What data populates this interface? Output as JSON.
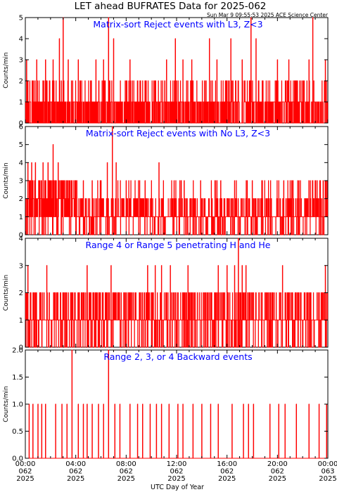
{
  "header": {
    "title": "LET ahead BUFRATES Data for 2025-062",
    "timestamp": "Sun Mar  9 09:55:53 2025 ACE Science Center"
  },
  "xaxis": {
    "label": "UTC Day of Year",
    "ticks": [
      {
        "time": "00:00",
        "doy": "062",
        "year": "2025"
      },
      {
        "time": "04:00",
        "doy": "062",
        "year": "2025"
      },
      {
        "time": "08:00",
        "doy": "062",
        "year": "2025"
      },
      {
        "time": "12:00",
        "doy": "062",
        "year": "2025"
      },
      {
        "time": "16:00",
        "doy": "062",
        "year": "2025"
      },
      {
        "time": "20:00",
        "doy": "062",
        "year": "2025"
      },
      {
        "time": "00:00",
        "doy": "063",
        "year": "2025"
      }
    ]
  },
  "colors": {
    "data": "#ff0000",
    "panel_title": "#0000ff",
    "axes": "#000000"
  },
  "chart_data": [
    {
      "type": "line",
      "title": "Matrix-sort Reject events with L3, Z<3",
      "ylabel": "Counts/min",
      "xlim": [
        0,
        24
      ],
      "ylim": [
        0,
        5
      ],
      "yticks": [
        "0",
        "1",
        "2",
        "3",
        "4",
        "5"
      ],
      "x_unit": "hours UTC",
      "notes": "minute-resolution counts; baseline mostly alternating 0-1 with frequent 2s",
      "peaks": [
        {
          "x": 0.1,
          "y": 3
        },
        {
          "x": 0.9,
          "y": 3
        },
        {
          "x": 1.6,
          "y": 3
        },
        {
          "x": 2.2,
          "y": 3
        },
        {
          "x": 2.7,
          "y": 4
        },
        {
          "x": 3.0,
          "y": 5
        },
        {
          "x": 3.4,
          "y": 3
        },
        {
          "x": 4.2,
          "y": 3
        },
        {
          "x": 5.6,
          "y": 3
        },
        {
          "x": 6.2,
          "y": 3
        },
        {
          "x": 6.6,
          "y": 5
        },
        {
          "x": 7.0,
          "y": 4
        },
        {
          "x": 8.3,
          "y": 3
        },
        {
          "x": 11.2,
          "y": 3
        },
        {
          "x": 11.9,
          "y": 4
        },
        {
          "x": 12.5,
          "y": 3
        },
        {
          "x": 13.2,
          "y": 3
        },
        {
          "x": 14.6,
          "y": 4
        },
        {
          "x": 15.2,
          "y": 3
        },
        {
          "x": 16.3,
          "y": 4
        },
        {
          "x": 17.2,
          "y": 3
        },
        {
          "x": 17.9,
          "y": 5
        },
        {
          "x": 18.3,
          "y": 4
        },
        {
          "x": 20.0,
          "y": 3
        },
        {
          "x": 20.9,
          "y": 3
        },
        {
          "x": 22.5,
          "y": 3
        },
        {
          "x": 22.8,
          "y": 5
        },
        {
          "x": 23.8,
          "y": 3
        }
      ]
    },
    {
      "type": "line",
      "title": "Matrix-sort Reject events with No L3, Z<3",
      "ylabel": "Counts/min",
      "xlim": [
        0,
        24
      ],
      "ylim": [
        0,
        6
      ],
      "yticks": [
        "0",
        "1",
        "2",
        "3",
        "4",
        "5",
        "6"
      ],
      "x_unit": "hours UTC",
      "notes": "busier in first hours (0-4), mostly 1 with frequent 2-3 afterwards",
      "peaks": [
        {
          "x": 0.2,
          "y": 4
        },
        {
          "x": 0.5,
          "y": 4
        },
        {
          "x": 0.8,
          "y": 4
        },
        {
          "x": 1.1,
          "y": 3
        },
        {
          "x": 1.4,
          "y": 4
        },
        {
          "x": 1.8,
          "y": 4
        },
        {
          "x": 2.2,
          "y": 5
        },
        {
          "x": 2.6,
          "y": 4
        },
        {
          "x": 3.0,
          "y": 3
        },
        {
          "x": 3.5,
          "y": 3
        },
        {
          "x": 4.0,
          "y": 3
        },
        {
          "x": 4.6,
          "y": 3
        },
        {
          "x": 5.3,
          "y": 3
        },
        {
          "x": 6.0,
          "y": 3
        },
        {
          "x": 6.5,
          "y": 4
        },
        {
          "x": 6.9,
          "y": 6
        },
        {
          "x": 7.2,
          "y": 4
        },
        {
          "x": 8.0,
          "y": 3
        },
        {
          "x": 9.5,
          "y": 3
        },
        {
          "x": 10.6,
          "y": 4
        },
        {
          "x": 11.8,
          "y": 3
        },
        {
          "x": 12.6,
          "y": 3
        },
        {
          "x": 13.9,
          "y": 3
        },
        {
          "x": 15.5,
          "y": 3
        },
        {
          "x": 16.6,
          "y": 3
        },
        {
          "x": 18.0,
          "y": 3
        },
        {
          "x": 18.8,
          "y": 3
        },
        {
          "x": 20.5,
          "y": 3
        },
        {
          "x": 21.7,
          "y": 3
        },
        {
          "x": 22.6,
          "y": 3
        },
        {
          "x": 23.4,
          "y": 3
        }
      ]
    },
    {
      "type": "line",
      "title": "Range 4 or Range 5 penetrating H and He",
      "ylabel": "Counts/min",
      "xlim": [
        0,
        24
      ],
      "ylim": [
        0,
        4
      ],
      "yticks": [
        "0",
        "1",
        "2",
        "3",
        "4"
      ],
      "x_unit": "hours UTC",
      "notes": "dense fill up to 1, frequent excursions to 2",
      "peaks": [
        {
          "x": 0.2,
          "y": 3
        },
        {
          "x": 1.7,
          "y": 3
        },
        {
          "x": 2.3,
          "y": 2
        },
        {
          "x": 4.9,
          "y": 3
        },
        {
          "x": 5.9,
          "y": 2
        },
        {
          "x": 6.8,
          "y": 3
        },
        {
          "x": 7.6,
          "y": 2
        },
        {
          "x": 9.7,
          "y": 3
        },
        {
          "x": 10.3,
          "y": 3
        },
        {
          "x": 10.8,
          "y": 3
        },
        {
          "x": 11.5,
          "y": 3
        },
        {
          "x": 12.9,
          "y": 3
        },
        {
          "x": 13.4,
          "y": 2
        },
        {
          "x": 15.3,
          "y": 3
        },
        {
          "x": 16.0,
          "y": 3
        },
        {
          "x": 16.6,
          "y": 3
        },
        {
          "x": 16.9,
          "y": 4
        },
        {
          "x": 17.2,
          "y": 3
        },
        {
          "x": 17.5,
          "y": 3
        },
        {
          "x": 20.4,
          "y": 3
        },
        {
          "x": 21.4,
          "y": 2
        },
        {
          "x": 22.4,
          "y": 2
        },
        {
          "x": 23.8,
          "y": 3
        }
      ]
    },
    {
      "type": "line",
      "title": "Range 2, 3, or 4 Backward events",
      "ylabel": "Counts/min",
      "xlim": [
        0,
        24
      ],
      "ylim": [
        0,
        2
      ],
      "yticks": [
        "0.0",
        "0.5",
        "1.0",
        "1.5",
        "2.0"
      ],
      "x_unit": "hours UTC",
      "notes": "sparse 1-count events, two 2-count events",
      "events": [
        {
          "x": 0.3,
          "y": 1
        },
        {
          "x": 0.6,
          "y": 1
        },
        {
          "x": 1.0,
          "y": 1
        },
        {
          "x": 1.3,
          "y": 1
        },
        {
          "x": 1.6,
          "y": 1
        },
        {
          "x": 2.4,
          "y": 1
        },
        {
          "x": 2.9,
          "y": 1
        },
        {
          "x": 3.3,
          "y": 1
        },
        {
          "x": 3.7,
          "y": 2
        },
        {
          "x": 4.2,
          "y": 1
        },
        {
          "x": 4.6,
          "y": 1
        },
        {
          "x": 4.9,
          "y": 1
        },
        {
          "x": 5.3,
          "y": 1
        },
        {
          "x": 5.8,
          "y": 1
        },
        {
          "x": 6.2,
          "y": 1
        },
        {
          "x": 6.6,
          "y": 2
        },
        {
          "x": 7.1,
          "y": 1
        },
        {
          "x": 7.5,
          "y": 1
        },
        {
          "x": 8.3,
          "y": 1
        },
        {
          "x": 8.9,
          "y": 1
        },
        {
          "x": 9.3,
          "y": 1
        },
        {
          "x": 9.9,
          "y": 1
        },
        {
          "x": 10.4,
          "y": 1
        },
        {
          "x": 10.8,
          "y": 1
        },
        {
          "x": 11.4,
          "y": 1
        },
        {
          "x": 12.1,
          "y": 1
        },
        {
          "x": 12.5,
          "y": 1
        },
        {
          "x": 13.3,
          "y": 1
        },
        {
          "x": 14.0,
          "y": 1
        },
        {
          "x": 14.7,
          "y": 1
        },
        {
          "x": 15.3,
          "y": 1
        },
        {
          "x": 16.4,
          "y": 1
        },
        {
          "x": 17.3,
          "y": 1
        },
        {
          "x": 17.7,
          "y": 1
        },
        {
          "x": 18.1,
          "y": 1
        },
        {
          "x": 19.4,
          "y": 1
        },
        {
          "x": 20.1,
          "y": 1
        },
        {
          "x": 20.6,
          "y": 1
        },
        {
          "x": 21.5,
          "y": 1
        },
        {
          "x": 22.5,
          "y": 1
        },
        {
          "x": 23.3,
          "y": 1
        },
        {
          "x": 23.9,
          "y": 1
        }
      ]
    }
  ]
}
